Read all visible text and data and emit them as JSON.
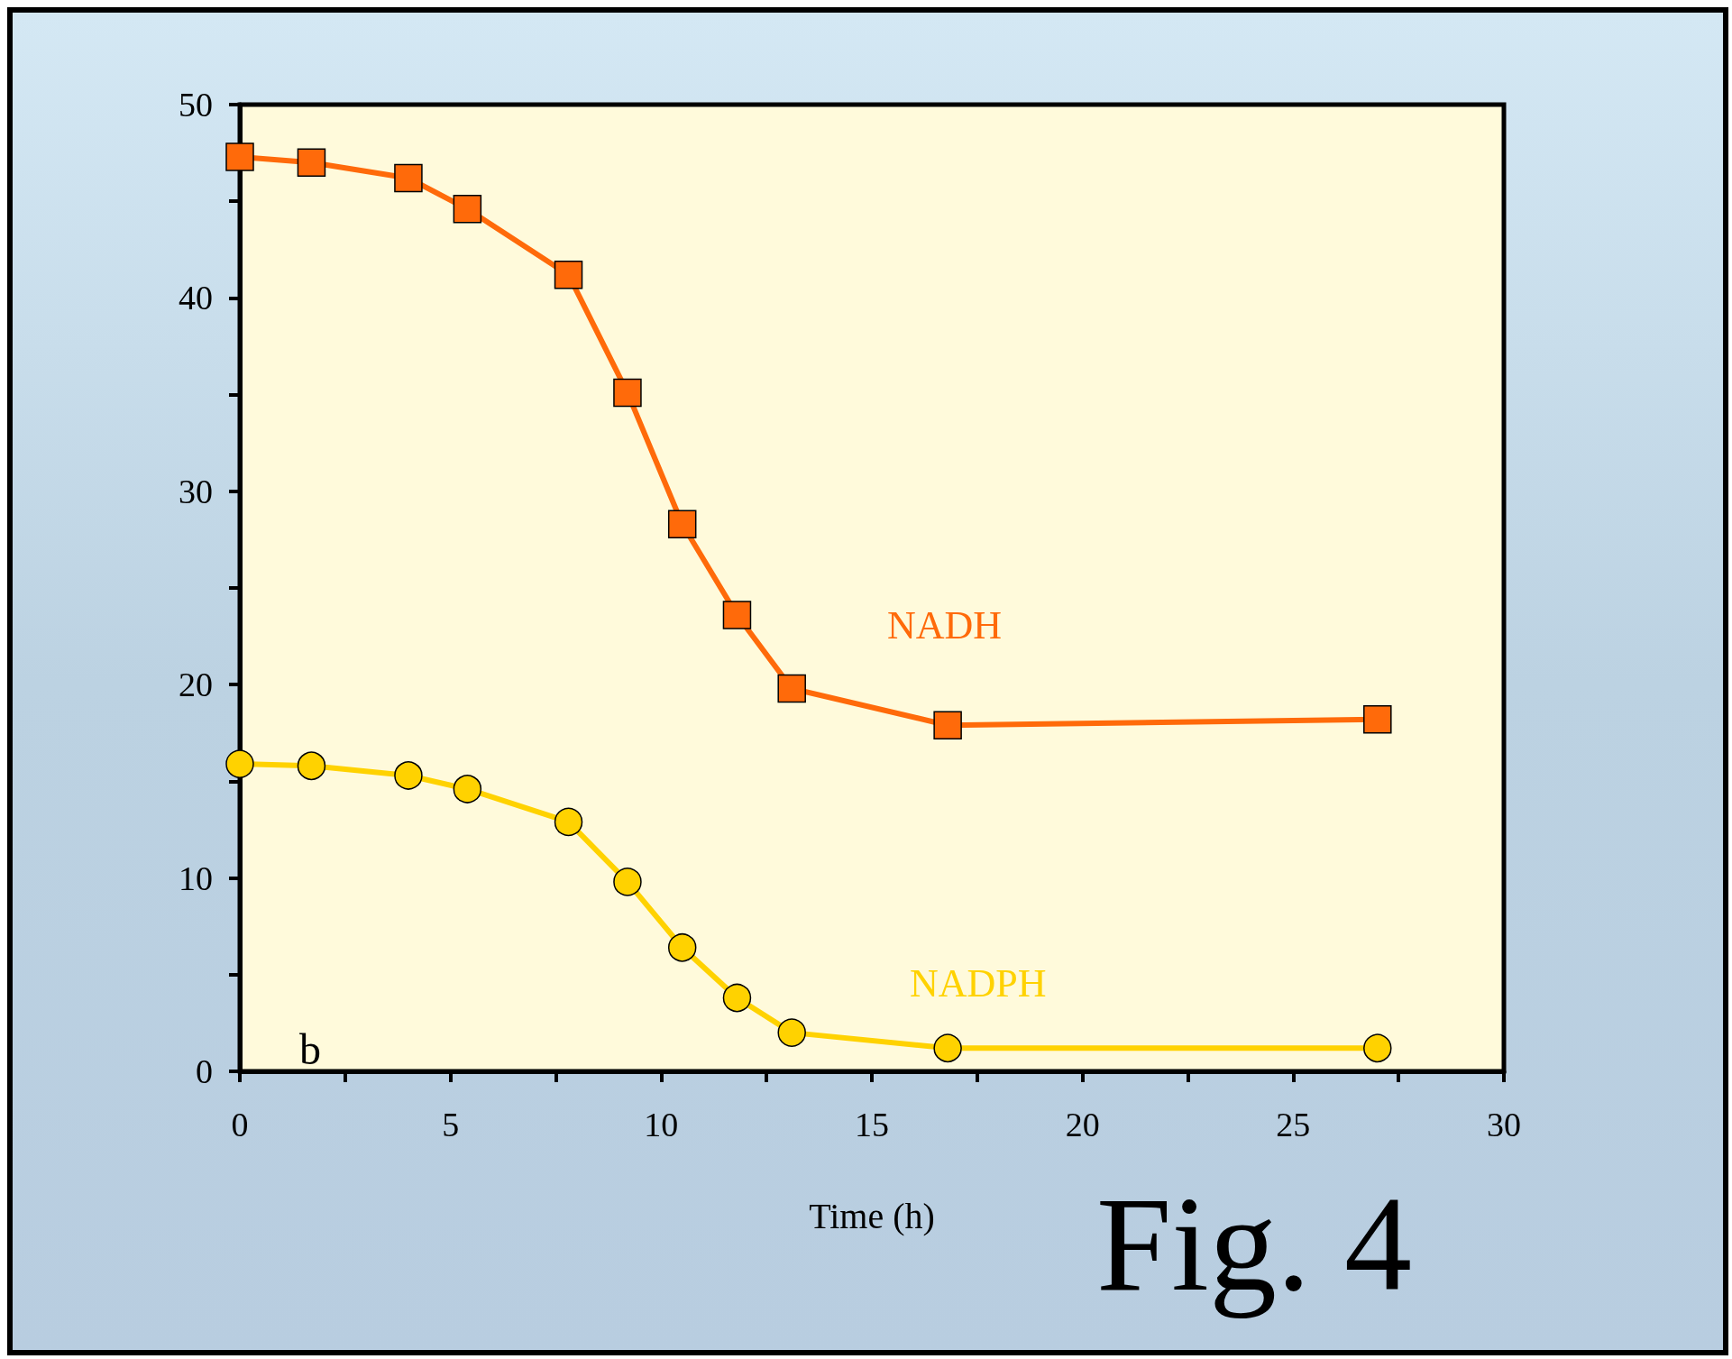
{
  "chart_data": {
    "type": "line",
    "xlabel": "Time (h)",
    "x": [
      0,
      1.7,
      4.0,
      5.4,
      7.8,
      9.2,
      10.5,
      11.8,
      13.1,
      16.8,
      27.0
    ],
    "series": [
      {
        "name": "NADH",
        "color": "#ff6a0a",
        "marker": "square",
        "values": [
          47.3,
          47.0,
          46.2,
          44.6,
          41.2,
          35.1,
          28.3,
          23.6,
          19.8,
          17.9,
          18.2
        ]
      },
      {
        "name": "NADPH",
        "color": "#ffd200",
        "marker": "circle",
        "values": [
          15.9,
          15.8,
          15.3,
          14.6,
          12.9,
          9.8,
          6.4,
          3.8,
          2.0,
          1.2,
          1.2
        ]
      }
    ],
    "xlim": [
      0,
      30
    ],
    "xticks": [
      0,
      {
        "value": 2.5,
        "label": null
      },
      5,
      {
        "value": 7.5,
        "label": null
      },
      10,
      {
        "value": 12.5,
        "label": null
      },
      15,
      {
        "value": 17.5,
        "label": null
      },
      20,
      {
        "value": 22.5,
        "label": null
      },
      25,
      {
        "value": 27.5,
        "label": null
      },
      30
    ],
    "ylim": [
      0,
      50
    ],
    "yticks": [
      0,
      {
        "value": 5,
        "label": null
      },
      10,
      {
        "value": 15,
        "label": null
      },
      20,
      {
        "value": 25,
        "label": null
      },
      30,
      {
        "value": 35,
        "label": null
      },
      40,
      {
        "value": 45,
        "label": null
      },
      50
    ],
    "grid": false,
    "line_style": "solid",
    "annotations": [
      "b",
      "Fig. 4"
    ]
  }
}
